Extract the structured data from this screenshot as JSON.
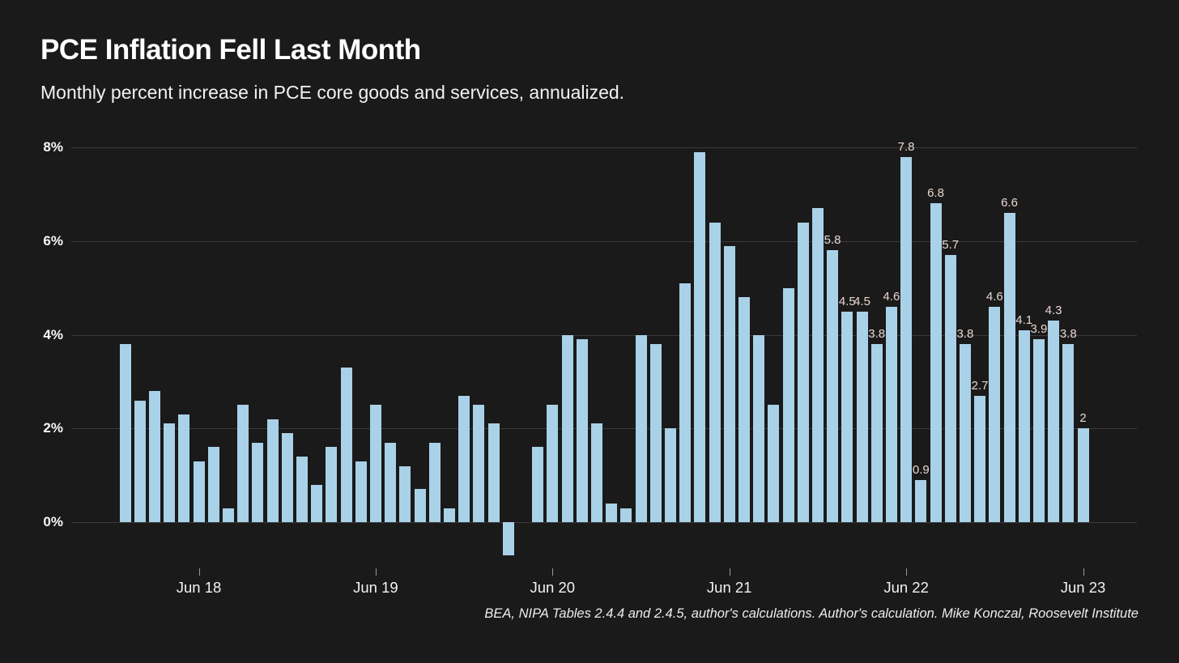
{
  "header": {
    "title": "PCE Inflation Fell Last Month",
    "subtitle": "Monthly percent increase in PCE core goods and services, annualized."
  },
  "footer": {
    "source": "BEA, NIPA Tables 2.4.4 and 2.4.5, author's calculations. Author's calculation. Mike Konczal, Roosevelt Institute"
  },
  "colors": {
    "background": "#1a1a1a",
    "bar": "#a9d1e8",
    "gridline": "#3a3a3a",
    "bar_label": "#e9d6d0",
    "text": "#ffffff"
  },
  "chart_data": {
    "type": "bar",
    "title": "PCE Inflation Fell Last Month",
    "subtitle": "Monthly percent increase in PCE core goods and services, annualized.",
    "xlabel": "",
    "ylabel": "",
    "ylim": [
      -0.8,
      8.4
    ],
    "yticks": [
      0,
      2,
      4,
      6,
      8
    ],
    "ytick_labels": [
      "0%",
      "2%",
      "4%",
      "6%",
      "8%"
    ],
    "grid": "horizontal",
    "legend": "none",
    "categories": [
      "Jan 18",
      "Feb 18",
      "Mar 18",
      "Apr 18",
      "May 18",
      "Jun 18",
      "Jul 18",
      "Aug 18",
      "Sep 18",
      "Oct 18",
      "Nov 18",
      "Dec 18",
      "Jan 19",
      "Feb 19",
      "Mar 19",
      "Apr 19",
      "May 19",
      "Jun 19",
      "Jul 19",
      "Aug 19",
      "Sep 19",
      "Oct 19",
      "Nov 19",
      "Dec 19",
      "Jan 20",
      "Feb 20",
      "Mar 20",
      "Apr 20",
      "May 20",
      "Jun 20",
      "Jul 20",
      "Aug 20",
      "Sep 20",
      "Oct 20",
      "Nov 20",
      "Dec 20",
      "Jan 21",
      "Feb 21",
      "Mar 21",
      "Apr 21",
      "May 21",
      "Jun 21",
      "Jul 21",
      "Aug 21",
      "Sep 21",
      "Oct 21",
      "Nov 21",
      "Dec 21",
      "Jan 22",
      "Feb 22",
      "Mar 22",
      "Apr 22",
      "May 22",
      "Jun 22",
      "Jul 22",
      "Aug 22",
      "Sep 22",
      "Oct 22",
      "Nov 22",
      "Dec 22",
      "Jan 23",
      "Feb 23",
      "Mar 23",
      "Apr 23",
      "May 23",
      "Jun 23"
    ],
    "values": [
      3.8,
      2.6,
      2.8,
      2.1,
      2.3,
      1.3,
      1.6,
      0.3,
      2.5,
      1.7,
      2.2,
      1.9,
      1.4,
      0.8,
      1.6,
      3.3,
      1.3,
      2.5,
      1.7,
      1.2,
      0.7,
      1.7,
      0.3,
      2.7,
      2.5,
      2.1,
      -0.7,
      0,
      1.6,
      2.5,
      4.0,
      3.9,
      2.1,
      0.4,
      0.3,
      4.0,
      3.8,
      2.0,
      5.1,
      7.9,
      6.4,
      5.9,
      4.8,
      4.0,
      2.5,
      5.0,
      6.4,
      6.7,
      5.8,
      4.5,
      4.5,
      3.8,
      4.6,
      7.8,
      0.9,
      6.8,
      5.7,
      3.8,
      2.7,
      4.6,
      6.6,
      4.1,
      3.9,
      4.3,
      3.8,
      2.0
    ],
    "data_labels_start_index": 48,
    "data_labels": [
      "5.8",
      "4.5",
      "4.5",
      "3.8",
      "4.6",
      "7.8",
      "0.9",
      "6.8",
      "5.7",
      "3.8",
      "2.7",
      "4.6",
      "6.6",
      "4.1",
      "3.9",
      "4.3",
      "3.8",
      "2"
    ],
    "xtick_labels": [
      "Jun 18",
      "Jun 19",
      "Jun 20",
      "Jun 21",
      "Jun 22",
      "Jun 23"
    ],
    "xtick_bar_indices": [
      5,
      17,
      29,
      41,
      53,
      65
    ]
  }
}
